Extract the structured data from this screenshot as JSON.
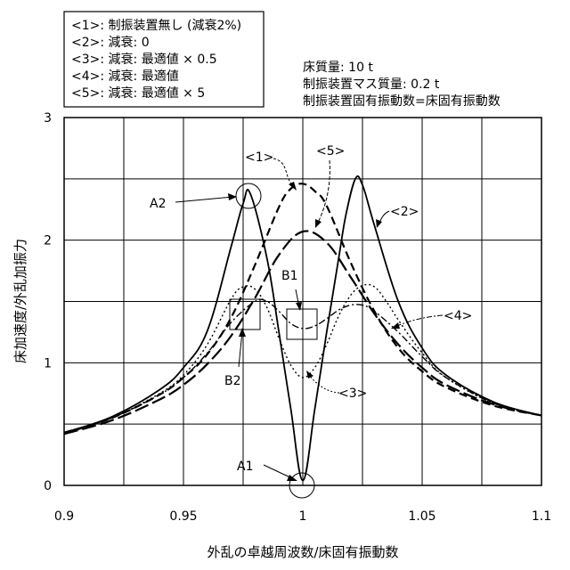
{
  "chart_data": {
    "type": "line",
    "title": "",
    "xlabel": "外乱の卓越周波数/床固有振動数",
    "ylabel": "床加速度/外乱加振力",
    "xlim": [
      0.9,
      1.1
    ],
    "ylim": [
      0,
      3
    ],
    "grid": true,
    "xticks": [
      "0.9",
      "0.95",
      "1",
      "1.05",
      "1.1"
    ],
    "yticks": [
      "0",
      "1",
      "2",
      "3"
    ],
    "legend": {
      "placement": "top-left",
      "entries": [
        "<1>: 制振装置無し (減衰2%)",
        "<2>: 減衰: 0",
        "<3>: 減衰: 最適値 × 0.5",
        "<4>: 減衰: 最適値",
        "<5>: 減衰: 最適値 × 5"
      ]
    },
    "info": [
      "床質量: 10 t",
      "制振装置マス質量: 0.2 t",
      "制振装置固有振動数=床固有振動数"
    ],
    "series": [
      {
        "name": "<1>",
        "style": "dashed",
        "x": [
          0.9,
          0.92,
          0.94,
          0.95,
          0.96,
          0.97,
          0.98,
          0.99,
          0.995,
          1.0,
          1.005,
          1.01,
          1.02,
          1.03,
          1.04,
          1.05,
          1.06,
          1.08,
          1.1
        ],
        "y": [
          0.43,
          0.55,
          0.74,
          0.88,
          1.07,
          1.37,
          1.8,
          2.27,
          2.42,
          2.46,
          2.4,
          2.28,
          1.82,
          1.42,
          1.12,
          0.93,
          0.8,
          0.65,
          0.57
        ]
      },
      {
        "name": "<2>",
        "style": "solid",
        "x": [
          0.9,
          0.92,
          0.94,
          0.95,
          0.96,
          0.97,
          0.975,
          0.978,
          0.985,
          0.99,
          0.995,
          1.0,
          1.005,
          1.01,
          1.015,
          1.018,
          1.022,
          1.025,
          1.03,
          1.04,
          1.05,
          1.06,
          1.08,
          1.1
        ],
        "y": [
          0.43,
          0.56,
          0.78,
          0.96,
          1.26,
          1.95,
          2.3,
          2.38,
          1.85,
          1.25,
          0.62,
          0.04,
          0.62,
          1.25,
          1.85,
          2.2,
          2.5,
          2.45,
          2.12,
          1.5,
          1.12,
          0.9,
          0.68,
          0.57
        ]
      },
      {
        "name": "<3>",
        "style": "dotted",
        "x": [
          0.9,
          0.92,
          0.94,
          0.95,
          0.96,
          0.97,
          0.975,
          0.98,
          0.985,
          0.99,
          0.995,
          1.0,
          1.005,
          1.01,
          1.015,
          1.02,
          1.025,
          1.03,
          1.035,
          1.04,
          1.05,
          1.06,
          1.08,
          1.1
        ],
        "y": [
          0.42,
          0.55,
          0.75,
          0.9,
          1.15,
          1.52,
          1.62,
          1.6,
          1.45,
          1.2,
          0.98,
          0.88,
          0.96,
          1.15,
          1.38,
          1.55,
          1.63,
          1.62,
          1.5,
          1.35,
          1.08,
          0.88,
          0.67,
          0.57
        ]
      },
      {
        "name": "<4>",
        "style": "dash-dot",
        "x": [
          0.9,
          0.92,
          0.94,
          0.95,
          0.96,
          0.97,
          0.98,
          0.985,
          0.99,
          0.995,
          1.0,
          1.005,
          1.01,
          1.015,
          1.02,
          1.025,
          1.03,
          1.04,
          1.05,
          1.06,
          1.08,
          1.1
        ],
        "y": [
          0.42,
          0.55,
          0.74,
          0.88,
          1.08,
          1.33,
          1.5,
          1.5,
          1.42,
          1.32,
          1.28,
          1.3,
          1.36,
          1.43,
          1.47,
          1.47,
          1.42,
          1.25,
          1.05,
          0.88,
          0.67,
          0.57
        ]
      },
      {
        "name": "<5>",
        "style": "long-dash",
        "x": [
          0.9,
          0.92,
          0.94,
          0.95,
          0.96,
          0.97,
          0.98,
          0.99,
          1.0,
          1.01,
          1.02,
          1.03,
          1.04,
          1.05,
          1.06,
          1.08,
          1.1
        ],
        "y": [
          0.42,
          0.53,
          0.7,
          0.82,
          0.99,
          1.22,
          1.53,
          1.88,
          2.07,
          1.98,
          1.7,
          1.4,
          1.15,
          0.96,
          0.82,
          0.66,
          0.57
        ]
      }
    ],
    "annotations": [
      {
        "label": "<1>",
        "text": "<1>"
      },
      {
        "label": "<2>",
        "text": "<2>"
      },
      {
        "label": "<3>",
        "text": "<3>"
      },
      {
        "label": "<4>",
        "text": "<4>"
      },
      {
        "label": "<5>",
        "text": "<5>"
      },
      {
        "label": "A1",
        "text": "A1"
      },
      {
        "label": "A2",
        "text": "A2"
      },
      {
        "label": "B1",
        "text": "B1"
      },
      {
        "label": "B2",
        "text": "B2"
      }
    ]
  }
}
